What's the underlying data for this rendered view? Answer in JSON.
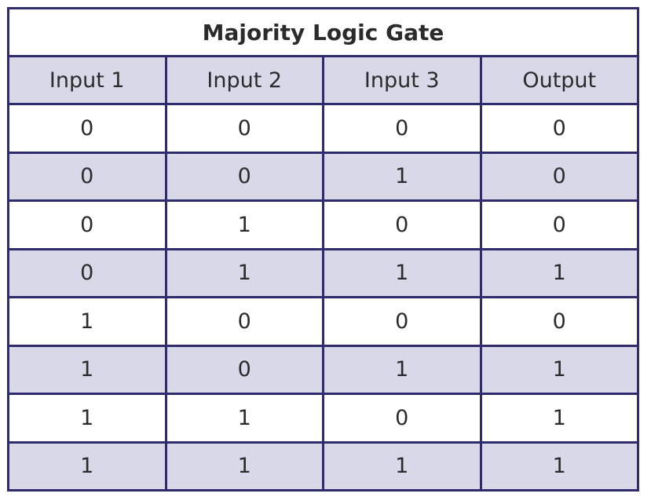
{
  "table": {
    "title": "Majority Logic Gate",
    "header": [
      "Input 1",
      "Input 2",
      "Input 3",
      "Output"
    ],
    "rows": [
      [
        0,
        0,
        0,
        0
      ],
      [
        0,
        0,
        1,
        0
      ],
      [
        0,
        1,
        0,
        0
      ],
      [
        0,
        1,
        1,
        1
      ],
      [
        1,
        0,
        0,
        0
      ],
      [
        1,
        0,
        1,
        1
      ],
      [
        1,
        1,
        0,
        1
      ],
      [
        1,
        1,
        1,
        1
      ]
    ]
  }
}
